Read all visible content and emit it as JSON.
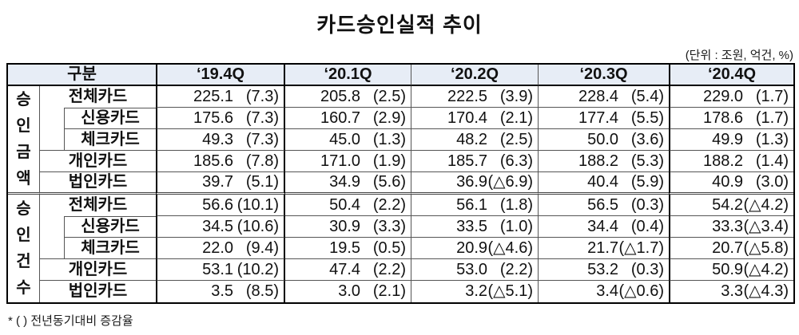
{
  "title": "카드승인실적 추이",
  "unit_note": "(단위 : 조원, 억건, %)",
  "footnote": "* ( ) 전년동기대비 증감율",
  "colors": {
    "header_bg": "#e7edf6",
    "border_strong": "#000000",
    "border_light": "#555555",
    "text": "#111111"
  },
  "table": {
    "corner_label": "구분",
    "quarters": [
      "‘19.4Q",
      "‘20.1Q",
      "‘20.2Q",
      "‘20.3Q",
      "‘20.4Q"
    ],
    "highlighted_quarters": [
      "‘19.4Q",
      "‘20.4Q"
    ],
    "groups": [
      {
        "label": "승\n인\n금\n액",
        "rows": [
          {
            "label": "전체카드",
            "indent": false,
            "cells": [
              {
                "v": "225.1",
                "r": "(7.3)"
              },
              {
                "v": "205.8",
                "r": "(2.5)"
              },
              {
                "v": "222.5",
                "r": "(3.9)"
              },
              {
                "v": "228.4",
                "r": "(5.4)"
              },
              {
                "v": "229.0",
                "r": "(1.7)"
              }
            ]
          },
          {
            "label": "신용카드",
            "indent": true,
            "cells": [
              {
                "v": "175.6",
                "r": "(7.3)"
              },
              {
                "v": "160.7",
                "r": "(2.9)"
              },
              {
                "v": "170.4",
                "r": "(2.1)"
              },
              {
                "v": "177.4",
                "r": "(5.5)"
              },
              {
                "v": "178.6",
                "r": "(1.7)"
              }
            ]
          },
          {
            "label": "체크카드",
            "indent": true,
            "cells": [
              {
                "v": "49.3",
                "r": "(7.3)"
              },
              {
                "v": "45.0",
                "r": "(1.3)"
              },
              {
                "v": "48.2",
                "r": "(2.5)"
              },
              {
                "v": "50.0",
                "r": "(3.6)"
              },
              {
                "v": "49.9",
                "r": "(1.3)"
              }
            ]
          },
          {
            "label": "개인카드",
            "indent": false,
            "cells": [
              {
                "v": "185.6",
                "r": "(7.8)"
              },
              {
                "v": "171.0",
                "r": "(1.9)"
              },
              {
                "v": "185.7",
                "r": "(6.3)"
              },
              {
                "v": "188.2",
                "r": "(5.3)"
              },
              {
                "v": "188.2",
                "r": "(1.4)"
              }
            ]
          },
          {
            "label": "법인카드",
            "indent": false,
            "cells": [
              {
                "v": "39.7",
                "r": "(5.1)"
              },
              {
                "v": "34.9",
                "r": "(5.6)"
              },
              {
                "v": "36.9",
                "r": "(△6.9)"
              },
              {
                "v": "40.4",
                "r": "(5.9)"
              },
              {
                "v": "40.9",
                "r": "(3.0)"
              }
            ]
          }
        ]
      },
      {
        "label": "승\n인\n건\n수",
        "rows": [
          {
            "label": "전체카드",
            "indent": false,
            "cells": [
              {
                "v": "56.6",
                "r": "(10.1)"
              },
              {
                "v": "50.4",
                "r": "(2.2)"
              },
              {
                "v": "56.1",
                "r": "(1.8)"
              },
              {
                "v": "56.5",
                "r": "(0.3)"
              },
              {
                "v": "54.2",
                "r": "(△4.2)"
              }
            ]
          },
          {
            "label": "신용카드",
            "indent": true,
            "cells": [
              {
                "v": "34.5",
                "r": "(10.6)"
              },
              {
                "v": "30.9",
                "r": "(3.3)"
              },
              {
                "v": "33.5",
                "r": "(1.0)"
              },
              {
                "v": "34.4",
                "r": "(0.4)"
              },
              {
                "v": "33.3",
                "r": "(△3.4)"
              }
            ]
          },
          {
            "label": "체크카드",
            "indent": true,
            "cells": [
              {
                "v": "22.0",
                "r": "(9.4)"
              },
              {
                "v": "19.5",
                "r": "(0.5)"
              },
              {
                "v": "20.9",
                "r": "(△4.6)"
              },
              {
                "v": "21.7",
                "r": "(△1.7)"
              },
              {
                "v": "20.7",
                "r": "(△5.8)"
              }
            ]
          },
          {
            "label": "개인카드",
            "indent": false,
            "cells": [
              {
                "v": "53.1",
                "r": "(10.2)"
              },
              {
                "v": "47.4",
                "r": "(2.2)"
              },
              {
                "v": "53.0",
                "r": "(2.2)"
              },
              {
                "v": "53.2",
                "r": "(0.3)"
              },
              {
                "v": "50.9",
                "r": "(△4.2)"
              }
            ]
          },
          {
            "label": "법인카드",
            "indent": false,
            "cells": [
              {
                "v": "3.5",
                "r": "(8.5)"
              },
              {
                "v": "3.0",
                "r": "(2.1)"
              },
              {
                "v": "3.2",
                "r": "(△5.1)"
              },
              {
                "v": "3.4",
                "r": "(△0.6)"
              },
              {
                "v": "3.3",
                "r": "(△4.3)"
              }
            ]
          }
        ]
      }
    ]
  }
}
